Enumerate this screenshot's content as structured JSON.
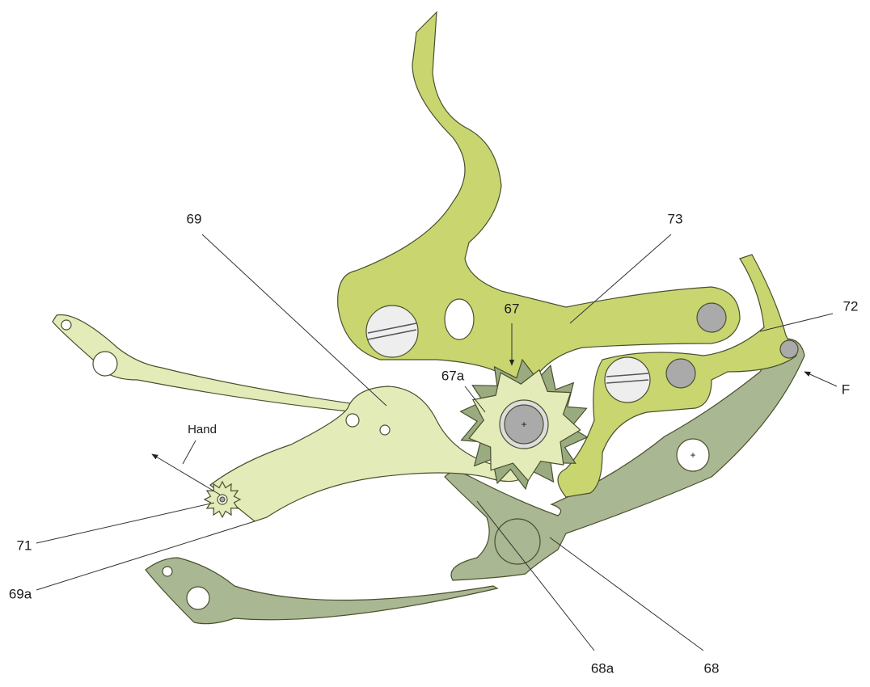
{
  "labels": {
    "l69": "69",
    "l73": "73",
    "l67": "67",
    "l72": "72",
    "l67a": "67a",
    "lF": "F",
    "hand": "Hand",
    "l71": "71",
    "l69a": "69a",
    "l68a": "68a",
    "l68": "68"
  }
}
